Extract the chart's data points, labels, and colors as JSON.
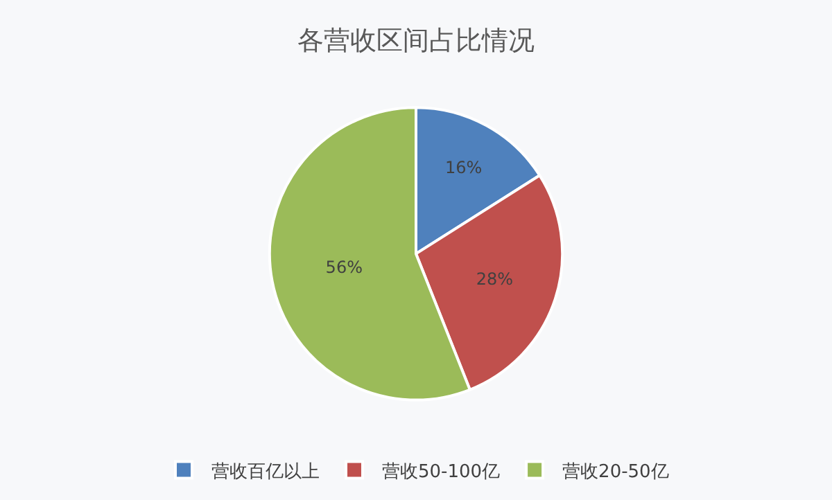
{
  "chart_data": {
    "type": "pie",
    "title": "各营收区间占比情况",
    "categories": [
      "营收百亿以上",
      "营收50-100亿",
      "营收20-50亿"
    ],
    "values": [
      16,
      28,
      56
    ],
    "value_labels": [
      "16%",
      "28%",
      "56%"
    ],
    "colors": [
      "#4f81bd",
      "#c0504d",
      "#9bbb59"
    ],
    "legend": "bottom"
  }
}
